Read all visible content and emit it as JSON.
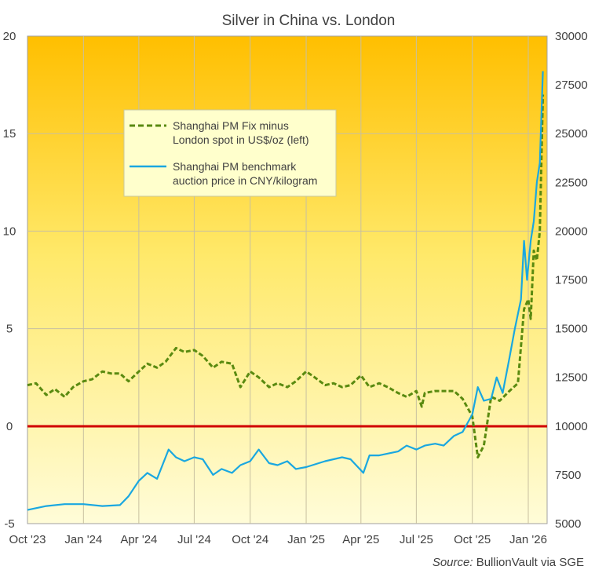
{
  "chart_data": {
    "type": "line",
    "title": "Silver in China vs. London",
    "source_label": "Source:",
    "source_text": " BullionVault  via SGE",
    "x_ticks": [
      "Oct '23",
      "Jan '24",
      "Apr '24",
      "Jul '24",
      "Oct '24",
      "Jan '25",
      "Apr '25",
      "Jul '25",
      "Oct '25",
      "Jan '26"
    ],
    "x_tick_dates": [
      "2023-10-01",
      "2024-01-01",
      "2024-04-01",
      "2024-07-01",
      "2024-10-01",
      "2025-01-01",
      "2025-04-01",
      "2025-07-01",
      "2025-10-01",
      "2026-01-01"
    ],
    "y_left": {
      "min": -5,
      "max": 20,
      "ticks": [
        -5,
        0,
        5,
        10,
        15,
        20
      ]
    },
    "y_right": {
      "min": 5000,
      "max": 30000,
      "ticks": [
        5000,
        7500,
        10000,
        12500,
        15000,
        17500,
        20000,
        22500,
        25000,
        27500,
        30000
      ]
    },
    "grid": true,
    "zero_line_color": "#d00000",
    "legend_placement": "upper-left-center",
    "series": [
      {
        "name": "Shanghai PM Fix minus London spot in US$/oz (left)",
        "axis": "left",
        "color": "#5a8a10",
        "style": "dashed",
        "points": [
          [
            "2023-10-01",
            2.1
          ],
          [
            "2023-10-15",
            2.2
          ],
          [
            "2023-11-01",
            1.6
          ],
          [
            "2023-11-15",
            1.9
          ],
          [
            "2023-12-01",
            1.5
          ],
          [
            "2023-12-15",
            2.0
          ],
          [
            "2024-01-01",
            2.3
          ],
          [
            "2024-01-15",
            2.4
          ],
          [
            "2024-02-01",
            2.8
          ],
          [
            "2024-02-15",
            2.7
          ],
          [
            "2024-03-01",
            2.7
          ],
          [
            "2024-03-15",
            2.3
          ],
          [
            "2024-04-01",
            2.8
          ],
          [
            "2024-04-15",
            3.2
          ],
          [
            "2024-05-01",
            3.0
          ],
          [
            "2024-05-15",
            3.3
          ],
          [
            "2024-06-01",
            4.0
          ],
          [
            "2024-06-15",
            3.8
          ],
          [
            "2024-07-01",
            3.9
          ],
          [
            "2024-07-15",
            3.6
          ],
          [
            "2024-08-01",
            3.0
          ],
          [
            "2024-08-15",
            3.3
          ],
          [
            "2024-09-01",
            3.2
          ],
          [
            "2024-09-15",
            2.0
          ],
          [
            "2024-10-01",
            2.8
          ],
          [
            "2024-10-15",
            2.5
          ],
          [
            "2024-11-01",
            2.0
          ],
          [
            "2024-11-15",
            2.2
          ],
          [
            "2024-12-01",
            2.0
          ],
          [
            "2024-12-15",
            2.3
          ],
          [
            "2025-01-01",
            2.8
          ],
          [
            "2025-01-15",
            2.5
          ],
          [
            "2025-02-01",
            2.1
          ],
          [
            "2025-02-15",
            2.2
          ],
          [
            "2025-03-01",
            2.0
          ],
          [
            "2025-03-15",
            2.1
          ],
          [
            "2025-04-01",
            2.6
          ],
          [
            "2025-04-15",
            2.0
          ],
          [
            "2025-05-01",
            2.2
          ],
          [
            "2025-05-15",
            2.0
          ],
          [
            "2025-06-01",
            1.7
          ],
          [
            "2025-06-15",
            1.5
          ],
          [
            "2025-07-01",
            1.8
          ],
          [
            "2025-07-10",
            1.0
          ],
          [
            "2025-07-15",
            1.7
          ],
          [
            "2025-08-01",
            1.8
          ],
          [
            "2025-08-15",
            1.8
          ],
          [
            "2025-09-01",
            1.8
          ],
          [
            "2025-09-15",
            1.4
          ],
          [
            "2025-10-01",
            0.5
          ],
          [
            "2025-10-10",
            -1.6
          ],
          [
            "2025-10-20",
            -1.0
          ],
          [
            "2025-11-01",
            1.5
          ],
          [
            "2025-11-15",
            1.3
          ],
          [
            "2025-12-01",
            1.8
          ],
          [
            "2025-12-15",
            2.2
          ],
          [
            "2025-12-25",
            6.0
          ],
          [
            "2026-01-01",
            6.5
          ],
          [
            "2026-01-05",
            5.5
          ],
          [
            "2026-01-10",
            9.0
          ],
          [
            "2026-01-15",
            8.5
          ],
          [
            "2026-01-20",
            10.0
          ],
          [
            "2026-01-25",
            17.0
          ]
        ]
      },
      {
        "name": "Shanghai PM benchmark auction price in CNY/kilogram",
        "axis": "right",
        "color": "#1aa7e0",
        "style": "solid",
        "points": [
          [
            "2023-10-01",
            5700
          ],
          [
            "2023-11-01",
            5900
          ],
          [
            "2023-12-01",
            6000
          ],
          [
            "2024-01-01",
            6000
          ],
          [
            "2024-02-01",
            5900
          ],
          [
            "2024-03-01",
            5950
          ],
          [
            "2024-03-15",
            6400
          ],
          [
            "2024-04-01",
            7200
          ],
          [
            "2024-04-15",
            7600
          ],
          [
            "2024-05-01",
            7300
          ],
          [
            "2024-05-20",
            8800
          ],
          [
            "2024-06-01",
            8400
          ],
          [
            "2024-06-15",
            8200
          ],
          [
            "2024-07-01",
            8400
          ],
          [
            "2024-07-15",
            8300
          ],
          [
            "2024-08-01",
            7500
          ],
          [
            "2024-08-15",
            7800
          ],
          [
            "2024-09-01",
            7600
          ],
          [
            "2024-09-15",
            8000
          ],
          [
            "2024-10-01",
            8200
          ],
          [
            "2024-10-15",
            8800
          ],
          [
            "2024-11-01",
            8100
          ],
          [
            "2024-11-15",
            8000
          ],
          [
            "2024-12-01",
            8200
          ],
          [
            "2024-12-15",
            7800
          ],
          [
            "2025-01-01",
            7900
          ],
          [
            "2025-02-01",
            8200
          ],
          [
            "2025-03-01",
            8400
          ],
          [
            "2025-03-15",
            8300
          ],
          [
            "2025-04-05",
            7600
          ],
          [
            "2025-04-15",
            8500
          ],
          [
            "2025-05-01",
            8500
          ],
          [
            "2025-06-01",
            8700
          ],
          [
            "2025-06-15",
            9000
          ],
          [
            "2025-07-01",
            8800
          ],
          [
            "2025-07-15",
            9000
          ],
          [
            "2025-08-01",
            9100
          ],
          [
            "2025-08-15",
            9000
          ],
          [
            "2025-09-01",
            9500
          ],
          [
            "2025-09-15",
            9700
          ],
          [
            "2025-10-01",
            10600
          ],
          [
            "2025-10-10",
            12000
          ],
          [
            "2025-10-20",
            11300
          ],
          [
            "2025-11-01",
            11400
          ],
          [
            "2025-11-10",
            12500
          ],
          [
            "2025-11-20",
            11700
          ],
          [
            "2025-12-01",
            13500
          ],
          [
            "2025-12-10",
            15000
          ],
          [
            "2025-12-20",
            16500
          ],
          [
            "2025-12-25",
            19500
          ],
          [
            "2025-12-30",
            17500
          ],
          [
            "2026-01-05",
            19500
          ],
          [
            "2026-01-10",
            20500
          ],
          [
            "2026-01-15",
            22500
          ],
          [
            "2026-01-20",
            23500
          ],
          [
            "2026-01-25",
            28200
          ]
        ]
      }
    ],
    "legend": [
      {
        "line1": "Shanghai PM Fix minus",
        "line2": "London spot in US$/oz (left)"
      },
      {
        "line1": "Shanghai PM benchmark",
        "line2": "auction price in CNY/kilogram"
      }
    ]
  }
}
